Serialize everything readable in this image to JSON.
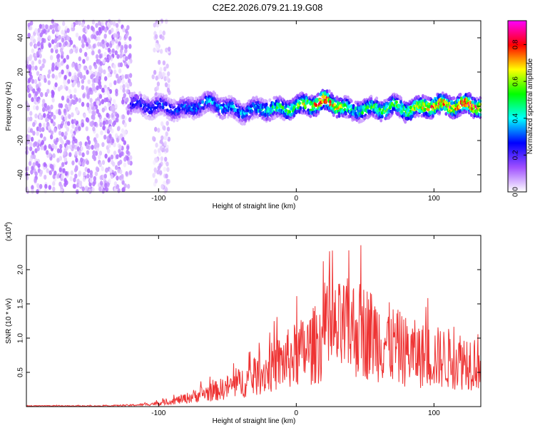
{
  "title": "C2E2.2026.079.21.19.G08",
  "chart_data": [
    {
      "type": "heatmap",
      "xlabel": "Height of straight line (km)",
      "ylabel": "Frequency (Hz)",
      "xlim": [
        -196,
        134
      ],
      "ylim": [
        -50,
        50
      ],
      "xticks": [
        -100,
        0,
        100
      ],
      "yticks": [
        -40,
        -20,
        0,
        20,
        40
      ],
      "grid": false,
      "colorbar": {
        "label": "Normalized spectral amplitude",
        "range": [
          0,
          0.93
        ],
        "ticks": [
          0.0,
          0.2,
          0.4,
          0.6,
          0.8
        ],
        "colors": [
          "#ffffff",
          "#a050ff",
          "#0000ff",
          "#00ffff",
          "#00ff00",
          "#ffff00",
          "#ff0000",
          "#ff00ff"
        ]
      },
      "regions": [
        {
          "name": "noise",
          "x_range": [
            -196,
            -120
          ],
          "y_range": [
            -50,
            50
          ],
          "amplitude": 0.05
        },
        {
          "name": "noise-strip",
          "x_range": [
            -104,
            -92
          ],
          "y_range": [
            -50,
            50
          ],
          "amplitude": 0.03
        }
      ],
      "ridge": {
        "x": [
          -120,
          -110,
          -100,
          -90,
          -80,
          -70,
          -60,
          -50,
          -40,
          -30,
          -20,
          -10,
          0,
          10,
          20,
          30,
          40,
          50,
          60,
          70,
          80,
          90,
          100,
          110,
          120,
          134
        ],
        "frequency": [
          2,
          0,
          0,
          -1,
          -2,
          1,
          2,
          -1,
          -3,
          -2,
          -1,
          -2,
          0,
          1,
          3,
          1,
          -3,
          -1,
          -2,
          0,
          -2,
          -1,
          1,
          0,
          1,
          0
        ],
        "peak_amplitude": [
          0.3,
          0.3,
          0.32,
          0.33,
          0.34,
          0.36,
          0.38,
          0.38,
          0.38,
          0.4,
          0.5,
          0.55,
          0.6,
          0.75,
          0.9,
          0.75,
          0.5,
          0.55,
          0.6,
          0.62,
          0.65,
          0.7,
          0.8,
          0.85,
          0.85,
          0.85
        ]
      }
    },
    {
      "type": "line",
      "xlabel": "Height of straight line (km)",
      "ylabel": "SNR (10 * v/v)",
      "y_multiplier": "(x10",
      "y_multiplier_exp": "4",
      "y_multiplier_close": ")",
      "xlim": [
        -196,
        134
      ],
      "ylim": [
        0,
        2.5
      ],
      "xticks": [
        -100,
        0,
        100
      ],
      "yticks": [
        0.5,
        1.0,
        1.5,
        2.0
      ],
      "grid": false,
      "series": [
        {
          "color": "#ee3333",
          "x": [
            -196,
            -180,
            -160,
            -140,
            -120,
            -110,
            -100,
            -90,
            -80,
            -70,
            -60,
            -50,
            -40,
            -30,
            -20,
            -10,
            0,
            10,
            20,
            30,
            40,
            50,
            60,
            70,
            80,
            90,
            100,
            110,
            120,
            134
          ],
          "y": [
            0.01,
            0.01,
            0.01,
            0.01,
            0.02,
            0.03,
            0.05,
            0.08,
            0.12,
            0.18,
            0.22,
            0.28,
            0.35,
            0.42,
            0.55,
            0.65,
            0.75,
            0.85,
            1.0,
            1.1,
            1.15,
            1.1,
            1.0,
            0.9,
            0.8,
            0.75,
            0.72,
            0.7,
            0.68,
            0.66
          ]
        }
      ]
    }
  ]
}
